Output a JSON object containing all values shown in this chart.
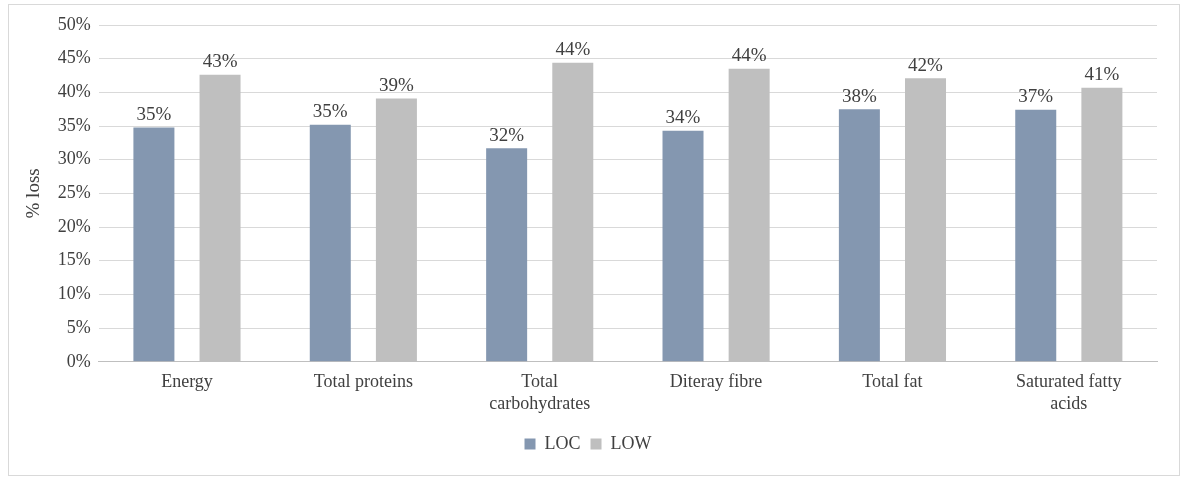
{
  "chart_data": {
    "type": "bar",
    "ylabel": "% loss",
    "categories": [
      "Energy",
      "Total proteins",
      "Total carbohydrates",
      "Diteray fibre",
      "Total fat",
      "Saturated fatty acids"
    ],
    "series": [
      {
        "name": "LOC",
        "color": "#8497b0",
        "values": [
          34.8,
          35.2,
          31.7,
          34.3,
          37.5,
          37.4
        ],
        "value_labels": [
          "35%",
          "35%",
          "32%",
          "34%",
          "38%",
          "37%"
        ]
      },
      {
        "name": "LOW",
        "color": "#bfbfbf",
        "values": [
          42.6,
          39.1,
          44.4,
          43.5,
          42.1,
          40.7
        ],
        "value_labels": [
          "43%",
          "39%",
          "44%",
          "44%",
          "42%",
          "41%"
        ]
      }
    ],
    "ylim": [
      0,
      50
    ],
    "yticks": [
      {
        "value": 0,
        "label": "0%"
      },
      {
        "value": 5,
        "label": "5%"
      },
      {
        "value": 10,
        "label": "10%"
      },
      {
        "value": 15,
        "label": "15%"
      },
      {
        "value": 20,
        "label": "20%"
      },
      {
        "value": 25,
        "label": "25%"
      },
      {
        "value": 30,
        "label": "30%"
      },
      {
        "value": 35,
        "label": "35%"
      },
      {
        "value": 40,
        "label": "40%"
      },
      {
        "value": 45,
        "label": "45%"
      },
      {
        "value": 50,
        "label": "50%"
      }
    ],
    "grid": "y",
    "legend": "bottom"
  }
}
